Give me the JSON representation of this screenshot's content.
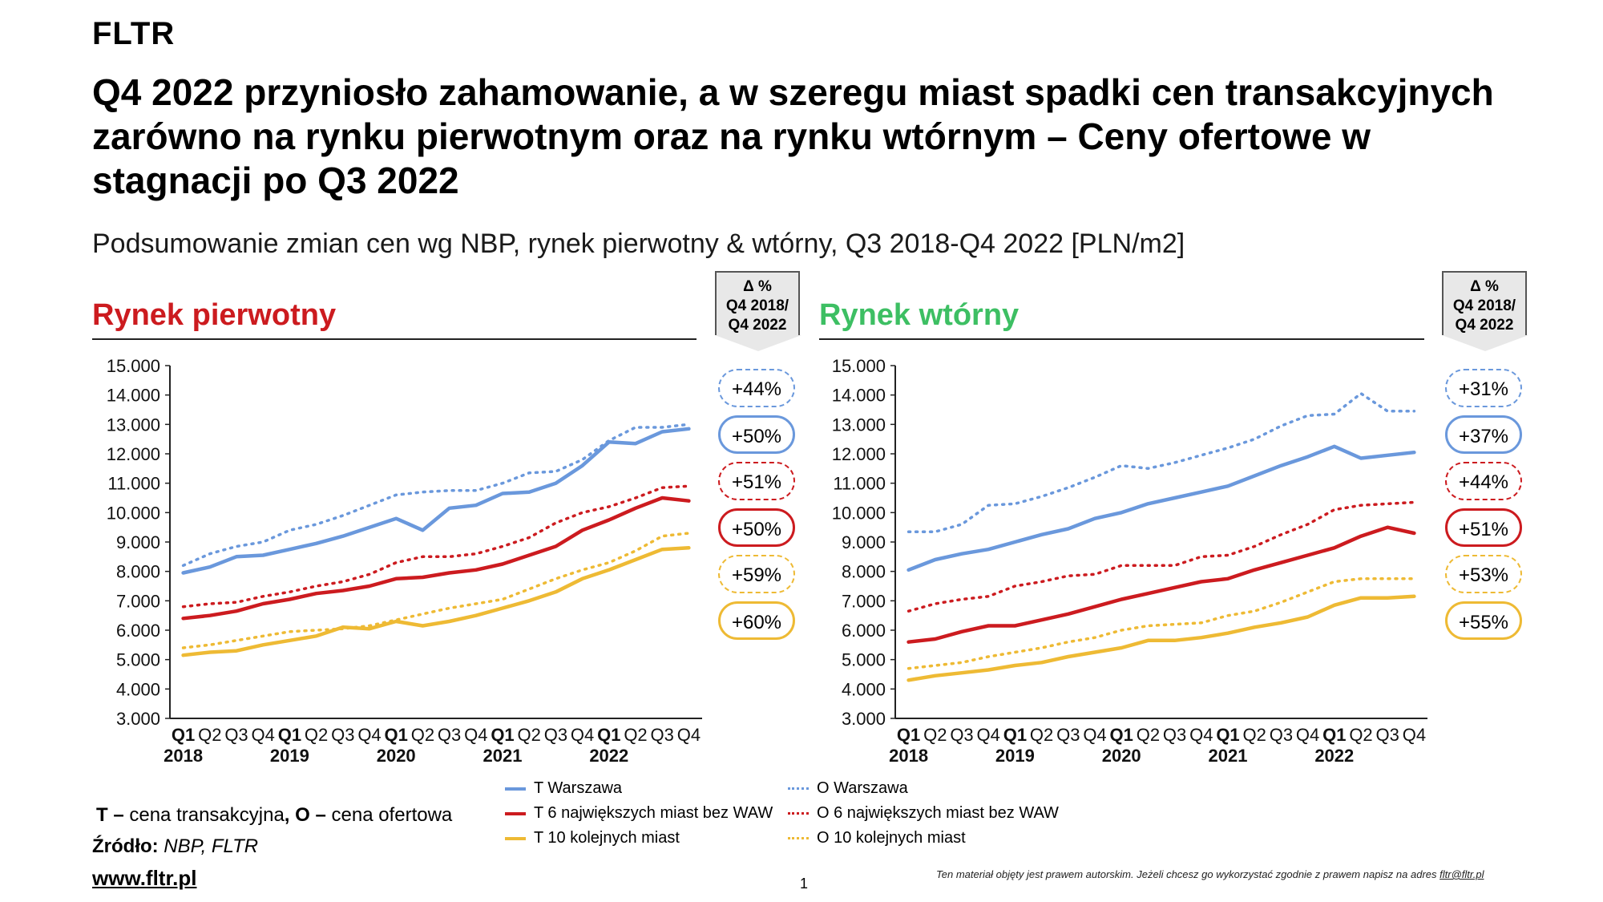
{
  "brand": "FLTR",
  "headline": "Q4 2022 przyniosło zahamowanie, a w szeregu miast spadki cen transakcyjnych zarówno na rynku pierwotnym oraz na rynku wtórnym – Ceny ofertowe w stagnacji po Q3 2022",
  "subtitle": "Podsumowanie zmian cen wg NBP, rynek pierwotny & wtórny, Q3 2018-Q4 2022 [PLN/m2]",
  "delta_header": {
    "line1": "Δ %",
    "line2": "Q4 2018/",
    "line3": "Q4 2022"
  },
  "legend": {
    "t_waw": "T Warszawa",
    "t_6": "T 6 największych miast bez WAW",
    "t_10": "T 10 kolejnych miast",
    "o_waw": "O Warszawa",
    "o_6": "O 6 największych miast bez WAW",
    "o_10": "O 10 kolejnych miast"
  },
  "note": {
    "t_bold": "T –",
    "t_text": " cena transakcyjna",
    "sep": ",",
    "o_bold": " O –",
    "o_text": " cena ofertowa"
  },
  "source": {
    "label": "Źródło:",
    "value": " NBP, FLTR"
  },
  "website": "www.fltr.pl",
  "copyright": {
    "text": "Ten materiał objęty jest prawem autorskim. Jeżeli chcesz go wykorzystać zgodnie z prawem napisz na adres ",
    "email": "fltr@fltr.pl"
  },
  "page_number": "1",
  "colors": {
    "blue": "#6a98dc",
    "red": "#cc1b1f",
    "yellow": "#eeba34",
    "title_red": "#cc1b1f",
    "title_green": "#3dbf63"
  },
  "chart_data": [
    {
      "type": "line",
      "title": "Rynek pierwotny",
      "ylim": [
        3000,
        15000
      ],
      "y_ticks": [
        "3.000",
        "4.000",
        "5.000",
        "6.000",
        "7.000",
        "8.000",
        "9.000",
        "10.000",
        "11.000",
        "12.000",
        "13.000",
        "14.000",
        "15.000"
      ],
      "quarters": [
        "Q1",
        "Q2",
        "Q3",
        "Q4",
        "Q1",
        "Q2",
        "Q3",
        "Q4",
        "Q1",
        "Q2",
        "Q3",
        "Q4",
        "Q1",
        "Q2",
        "Q3",
        "Q4",
        "Q1",
        "Q2",
        "Q3",
        "Q4"
      ],
      "years": [
        "2018",
        "2019",
        "2020",
        "2021",
        "2022"
      ],
      "series": [
        {
          "name": "T Warszawa",
          "color": "blue",
          "dashed": false,
          "values": [
            7950,
            8150,
            8500,
            8550,
            8750,
            8950,
            9200,
            9500,
            9800,
            9400,
            10150,
            10250,
            10650,
            10700,
            11000,
            11600,
            12400,
            12350,
            12750,
            12850
          ]
        },
        {
          "name": "O Warszawa",
          "color": "blue",
          "dashed": true,
          "values": [
            8200,
            8600,
            8850,
            9000,
            9400,
            9600,
            9900,
            10250,
            10600,
            10700,
            10750,
            10750,
            11000,
            11350,
            11400,
            11800,
            12450,
            12900,
            12900,
            13000
          ]
        },
        {
          "name": "T 6 największych miast bez WAW",
          "color": "red",
          "dashed": false,
          "values": [
            6400,
            6500,
            6650,
            6900,
            7050,
            7250,
            7350,
            7500,
            7750,
            7800,
            7950,
            8050,
            8250,
            8550,
            8850,
            9400,
            9750,
            10150,
            10500,
            10400
          ]
        },
        {
          "name": "O 6 największych miast bez WAW",
          "color": "red",
          "dashed": true,
          "values": [
            6800,
            6900,
            6950,
            7150,
            7300,
            7500,
            7650,
            7900,
            8300,
            8500,
            8500,
            8600,
            8850,
            9150,
            9650,
            10000,
            10200,
            10500,
            10850,
            10900
          ]
        },
        {
          "name": "T 10 kolejnych miast",
          "color": "yellow",
          "dashed": false,
          "values": [
            5150,
            5250,
            5300,
            5500,
            5650,
            5800,
            6100,
            6050,
            6300,
            6150,
            6300,
            6500,
            6750,
            7000,
            7300,
            7750,
            8050,
            8400,
            8750,
            8800
          ]
        },
        {
          "name": "O 10 kolejnych miast",
          "color": "yellow",
          "dashed": true,
          "values": [
            5400,
            5500,
            5650,
            5800,
            5950,
            6000,
            6050,
            6150,
            6350,
            6550,
            6750,
            6900,
            7050,
            7400,
            7750,
            8050,
            8300,
            8700,
            9200,
            9300
          ]
        }
      ],
      "deltas": [
        "+44%",
        "+50%",
        "+51%",
        "+50%",
        "+59%",
        "+60%"
      ]
    },
    {
      "type": "line",
      "title": "Rynek wtórny",
      "ylim": [
        3000,
        15000
      ],
      "y_ticks": [
        "3.000",
        "4.000",
        "5.000",
        "6.000",
        "7.000",
        "8.000",
        "9.000",
        "10.000",
        "11.000",
        "12.000",
        "13.000",
        "14.000",
        "15.000"
      ],
      "quarters": [
        "Q1",
        "Q2",
        "Q3",
        "Q4",
        "Q1",
        "Q2",
        "Q3",
        "Q4",
        "Q1",
        "Q2",
        "Q3",
        "Q4",
        "Q1",
        "Q2",
        "Q3",
        "Q4",
        "Q1",
        "Q2",
        "Q3",
        "Q4"
      ],
      "years": [
        "2018",
        "2019",
        "2020",
        "2021",
        "2022"
      ],
      "series": [
        {
          "name": "T Warszawa",
          "color": "blue",
          "dashed": false,
          "values": [
            8050,
            8400,
            8600,
            8750,
            9000,
            9250,
            9450,
            9800,
            10000,
            10300,
            10500,
            10700,
            10900,
            11250,
            11600,
            11900,
            12250,
            11850,
            11950,
            12050
          ]
        },
        {
          "name": "O Warszawa",
          "color": "blue",
          "dashed": true,
          "values": [
            9350,
            9350,
            9600,
            10250,
            10300,
            10550,
            10850,
            11200,
            11600,
            11500,
            11700,
            11950,
            12200,
            12500,
            12950,
            13300,
            13350,
            14050,
            13450,
            13450
          ]
        },
        {
          "name": "T 6 największych miast bez WAW",
          "color": "red",
          "dashed": false,
          "values": [
            5600,
            5700,
            5950,
            6150,
            6150,
            6350,
            6550,
            6800,
            7050,
            7250,
            7450,
            7650,
            7750,
            8050,
            8300,
            8550,
            8800,
            9200,
            9500,
            9300
          ]
        },
        {
          "name": "O 6 największych miast bez WAW",
          "color": "red",
          "dashed": true,
          "values": [
            6650,
            6900,
            7050,
            7150,
            7500,
            7650,
            7850,
            7900,
            8200,
            8200,
            8200,
            8500,
            8550,
            8850,
            9250,
            9600,
            10100,
            10250,
            10300,
            10350
          ]
        },
        {
          "name": "T 10 kolejnych miast",
          "color": "yellow",
          "dashed": false,
          "values": [
            4300,
            4450,
            4550,
            4650,
            4800,
            4900,
            5100,
            5250,
            5400,
            5650,
            5650,
            5750,
            5900,
            6100,
            6250,
            6450,
            6850,
            7100,
            7100,
            7150
          ]
        },
        {
          "name": "O 10 kolejnych miast",
          "color": "yellow",
          "dashed": true,
          "values": [
            4700,
            4800,
            4900,
            5100,
            5250,
            5400,
            5600,
            5750,
            6000,
            6150,
            6200,
            6250,
            6500,
            6650,
            6950,
            7300,
            7650,
            7750,
            7750,
            7750
          ]
        }
      ],
      "deltas": [
        "+31%",
        "+37%",
        "+44%",
        "+51%",
        "+53%",
        "+55%"
      ]
    }
  ]
}
